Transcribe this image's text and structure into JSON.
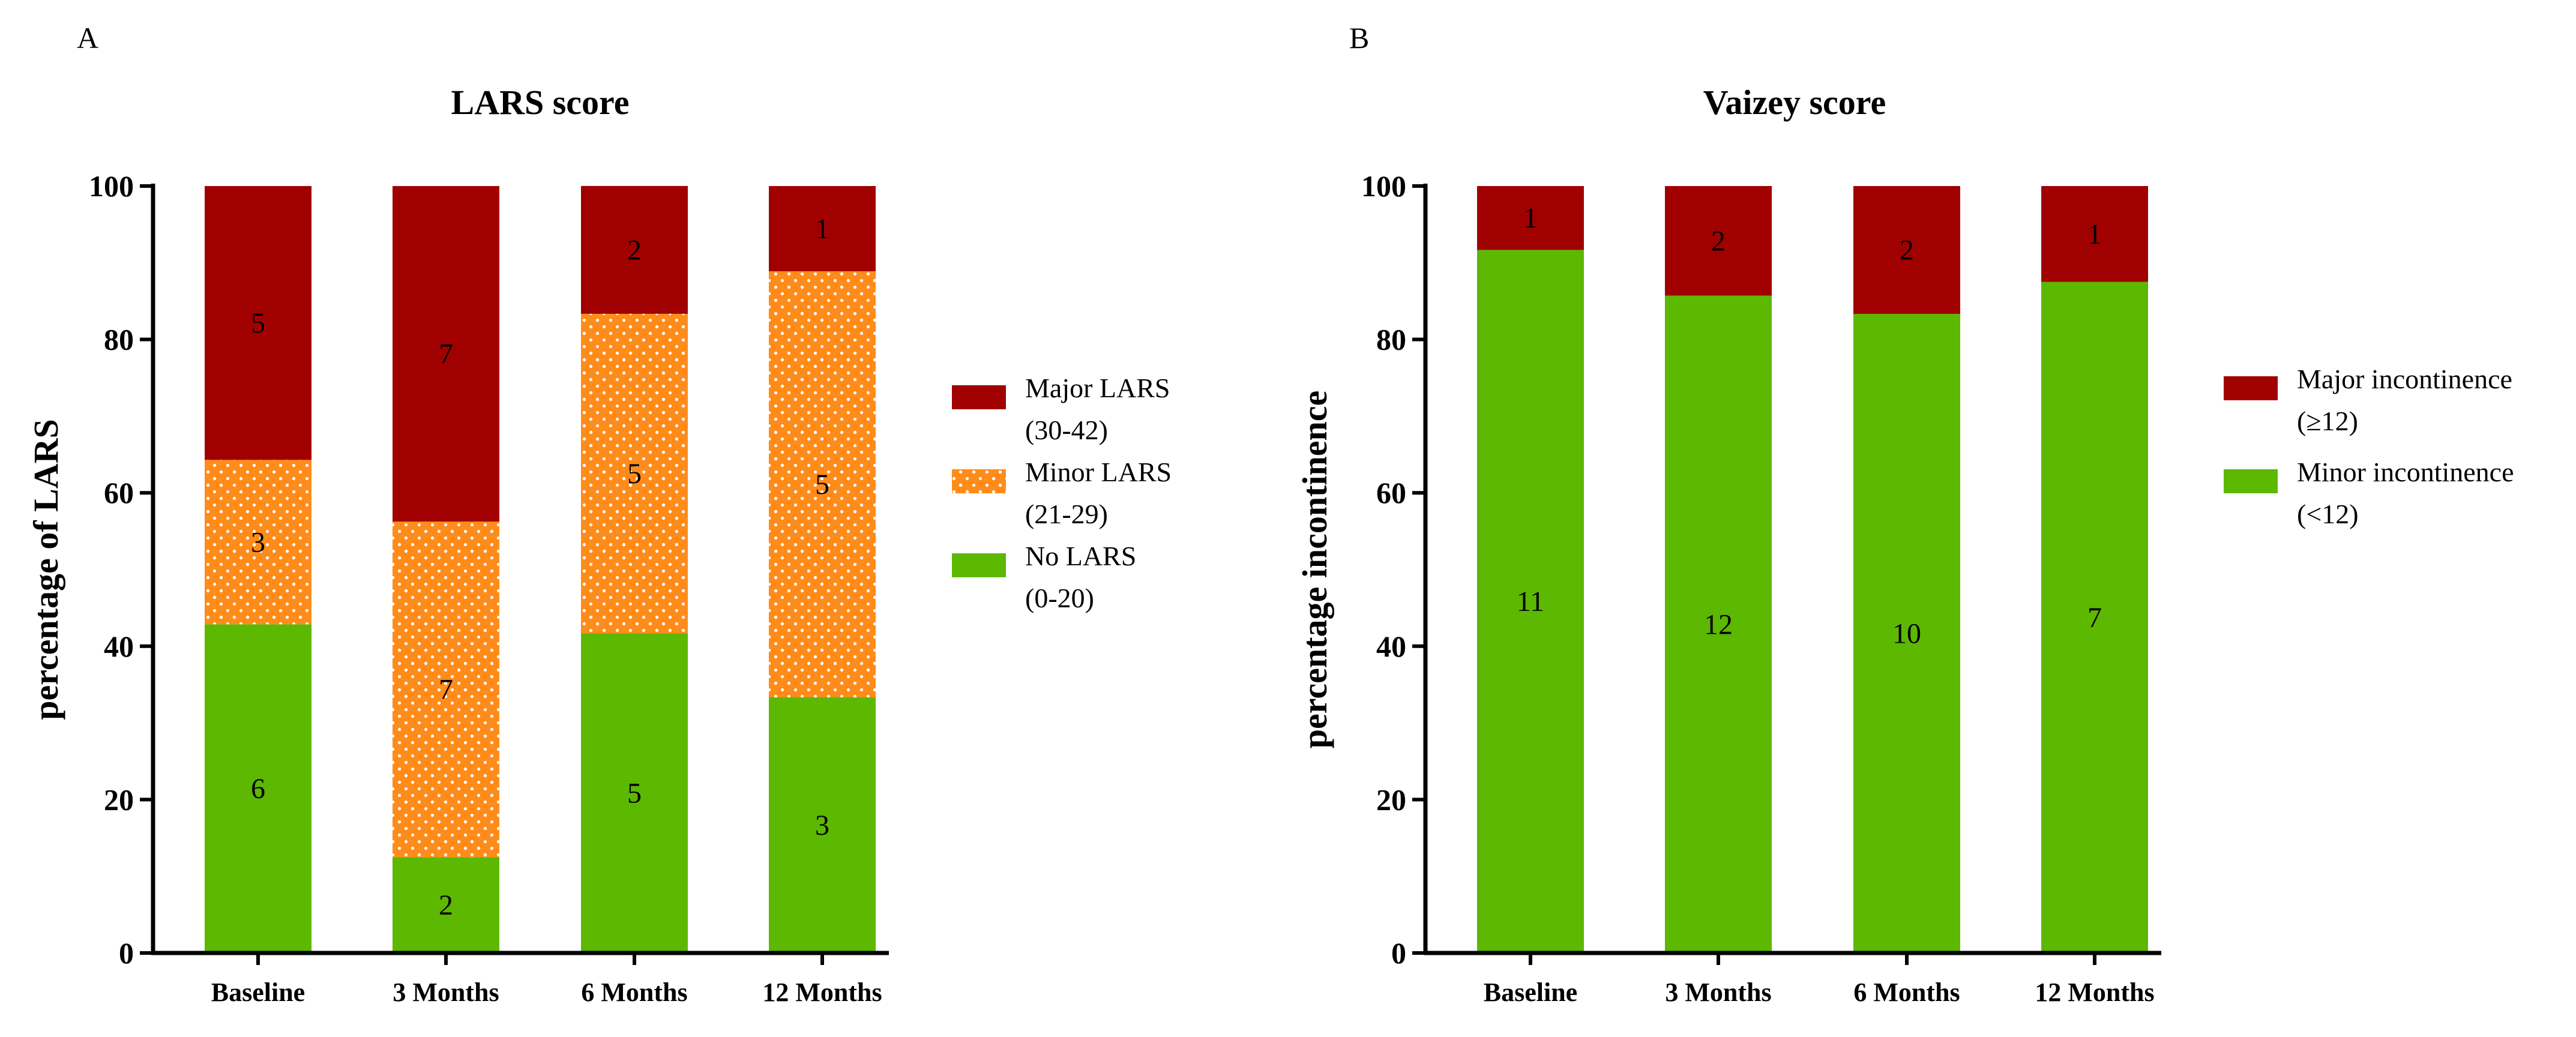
{
  "chart_data": [
    {
      "type": "bar",
      "stacked": true,
      "panel": "A",
      "title": "LARS score",
      "xlabel": "",
      "ylabel": "percentage of LARS",
      "ylim": [
        0,
        100
      ],
      "yticks": [
        0,
        20,
        40,
        60,
        80,
        100
      ],
      "categories": [
        "Baseline",
        "3 Months",
        "6 Months",
        "12 Months"
      ],
      "series": [
        {
          "name": "No LARS",
          "legend": [
            "No LARS",
            "(0-20)"
          ],
          "color": "#5cb800",
          "pattern": false,
          "values": [
            42.86,
            12.5,
            41.67,
            33.33
          ],
          "counts": [
            "6",
            "2",
            "5",
            "3"
          ]
        },
        {
          "name": "Minor LARS",
          "legend": [
            "Minor LARS",
            "(21-29)"
          ],
          "color": "#ff8c1a",
          "pattern": true,
          "values": [
            21.43,
            43.75,
            41.67,
            55.56
          ],
          "counts": [
            "3",
            "7",
            "5",
            "5"
          ]
        },
        {
          "name": "Major LARS",
          "legend": [
            "Major LARS",
            "(30-42)"
          ],
          "color": "#a10000",
          "pattern": false,
          "values": [
            35.71,
            43.75,
            16.67,
            11.11
          ],
          "counts": [
            "5",
            "7",
            "2",
            "1"
          ]
        }
      ],
      "legend_position": "right"
    },
    {
      "type": "bar",
      "stacked": true,
      "panel": "B",
      "title": "Vaizey score",
      "xlabel": "",
      "ylabel": "percentage incontinence",
      "ylim": [
        0,
        100
      ],
      "yticks": [
        0,
        20,
        40,
        60,
        80,
        100
      ],
      "categories": [
        "Baseline",
        "3 Months",
        "6 Months",
        "12 Months"
      ],
      "series": [
        {
          "name": "Minor incontinence",
          "legend": [
            "Minor incontinence",
            "(<12)"
          ],
          "color": "#5cb800",
          "pattern": false,
          "values": [
            91.67,
            85.71,
            83.33,
            87.5
          ],
          "counts": [
            "11",
            "12",
            "10",
            "7"
          ]
        },
        {
          "name": "Major incontinence",
          "legend": [
            "Major incontinence",
            "(≥12)"
          ],
          "color": "#a10000",
          "pattern": false,
          "values": [
            8.33,
            14.29,
            16.67,
            12.5
          ],
          "counts": [
            "1",
            "2",
            "2",
            "1"
          ]
        }
      ],
      "legend_position": "right"
    }
  ]
}
